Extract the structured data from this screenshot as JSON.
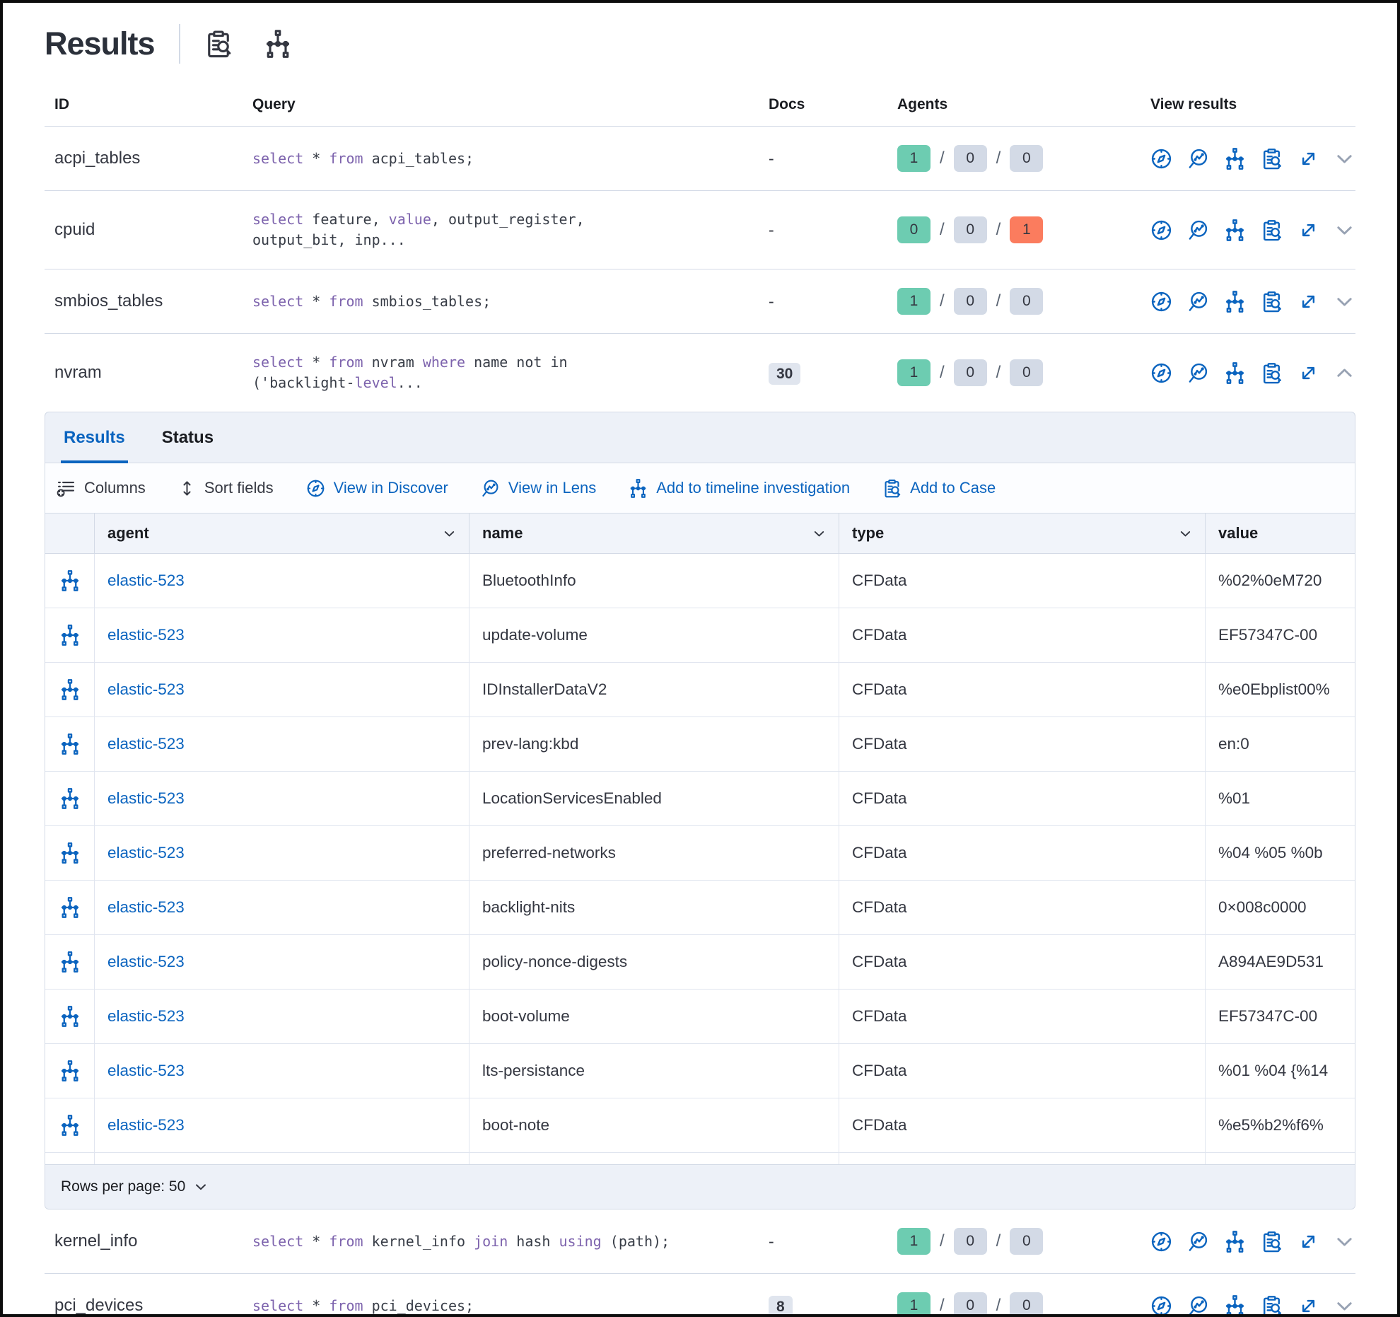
{
  "page": {
    "title": "Results"
  },
  "results_table": {
    "columns": {
      "id": "ID",
      "query": "Query",
      "docs": "Docs",
      "agents": "Agents",
      "view": "View results"
    },
    "rows_top": [
      {
        "id": "acpi_tables",
        "query": [
          {
            "c": "kw",
            "v": "select"
          },
          {
            "c": "pl",
            "v": " * "
          },
          {
            "c": "kw",
            "v": "from"
          },
          {
            "c": "pl",
            "v": " acpi_tables;"
          }
        ],
        "docs": "-",
        "docs_class": "docs-plain",
        "agents": [
          {
            "v": "1",
            "c": "green"
          },
          {
            "v": "0",
            "c": "gray"
          },
          {
            "v": "0",
            "c": "gray"
          }
        ],
        "chevron": "down"
      },
      {
        "id": "cpuid",
        "query": [
          {
            "c": "kw",
            "v": "select"
          },
          {
            "c": "pl",
            "v": " feature, "
          },
          {
            "c": "kw",
            "v": "value"
          },
          {
            "c": "pl",
            "v": ", output_register,\noutput_bit, inp..."
          }
        ],
        "docs": "-",
        "docs_class": "docs-plain",
        "agents": [
          {
            "v": "0",
            "c": "green"
          },
          {
            "v": "0",
            "c": "gray"
          },
          {
            "v": "1",
            "c": "red"
          }
        ],
        "chevron": "down"
      },
      {
        "id": "smbios_tables",
        "query": [
          {
            "c": "kw",
            "v": "select"
          },
          {
            "c": "pl",
            "v": " * "
          },
          {
            "c": "kw",
            "v": "from"
          },
          {
            "c": "pl",
            "v": " smbios_tables;"
          }
        ],
        "docs": "-",
        "docs_class": "docs-plain",
        "agents": [
          {
            "v": "1",
            "c": "green"
          },
          {
            "v": "0",
            "c": "gray"
          },
          {
            "v": "0",
            "c": "gray"
          }
        ],
        "chevron": "down"
      },
      {
        "id": "nvram",
        "query": [
          {
            "c": "kw",
            "v": "select"
          },
          {
            "c": "pl",
            "v": " * "
          },
          {
            "c": "kw",
            "v": "from"
          },
          {
            "c": "pl",
            "v": " nvram "
          },
          {
            "c": "kw",
            "v": "where"
          },
          {
            "c": "pl",
            "v": " name not in\n('backlight-"
          },
          {
            "c": "kw",
            "v": "level"
          },
          {
            "c": "pl",
            "v": "..."
          }
        ],
        "docs": "30",
        "docs_class": "docs-badge",
        "agents": [
          {
            "v": "1",
            "c": "green"
          },
          {
            "v": "0",
            "c": "gray"
          },
          {
            "v": "0",
            "c": "gray"
          }
        ],
        "chevron": "up"
      }
    ],
    "rows_bottom": [
      {
        "id": "kernel_info",
        "query": [
          {
            "c": "kw",
            "v": "select"
          },
          {
            "c": "pl",
            "v": " * "
          },
          {
            "c": "kw",
            "v": "from"
          },
          {
            "c": "pl",
            "v": " kernel_info "
          },
          {
            "c": "kw",
            "v": "join"
          },
          {
            "c": "pl",
            "v": " hash "
          },
          {
            "c": "kw",
            "v": "using"
          },
          {
            "c": "pl",
            "v": " (path);"
          }
        ],
        "docs": "-",
        "docs_class": "docs-plain",
        "agents": [
          {
            "v": "1",
            "c": "green"
          },
          {
            "v": "0",
            "c": "gray"
          },
          {
            "v": "0",
            "c": "gray"
          }
        ],
        "chevron": "down"
      },
      {
        "id": "pci_devices",
        "query": [
          {
            "c": "kw",
            "v": "select"
          },
          {
            "c": "pl",
            "v": " * "
          },
          {
            "c": "kw",
            "v": "from"
          },
          {
            "c": "pl",
            "v": " pci_devices;"
          }
        ],
        "docs": "8",
        "docs_class": "docs-badge",
        "agents": [
          {
            "v": "1",
            "c": "green"
          },
          {
            "v": "0",
            "c": "gray"
          },
          {
            "v": "0",
            "c": "gray"
          }
        ],
        "chevron": "down"
      }
    ]
  },
  "expanded": {
    "tabs": {
      "results": "Results",
      "status": "Status"
    },
    "toolbar": {
      "columns": "Columns",
      "sort_fields": "Sort fields",
      "view_in_discover": "View in Discover",
      "view_in_lens": "View in Lens",
      "add_to_timeline": "Add to timeline investigation",
      "add_to_case": "Add to Case"
    },
    "grid": {
      "columns": {
        "agent": "agent",
        "name": "name",
        "type": "type",
        "value": "value"
      },
      "rows": [
        {
          "agent": "elastic-523",
          "name": "BluetoothInfo",
          "type": "CFData",
          "value": "%02%0eM720"
        },
        {
          "agent": "elastic-523",
          "name": "update-volume",
          "type": "CFData",
          "value": "EF57347C-00"
        },
        {
          "agent": "elastic-523",
          "name": "IDInstallerDataV2",
          "type": "CFData",
          "value": "%e0Ebplist00%"
        },
        {
          "agent": "elastic-523",
          "name": "prev-lang:kbd",
          "type": "CFData",
          "value": "en:0"
        },
        {
          "agent": "elastic-523",
          "name": "LocationServicesEnabled",
          "type": "CFData",
          "value": "%01"
        },
        {
          "agent": "elastic-523",
          "name": "preferred-networks",
          "type": "CFData",
          "value": "%04 %05 %0b"
        },
        {
          "agent": "elastic-523",
          "name": "backlight-nits",
          "type": "CFData",
          "value": "0×008c0000"
        },
        {
          "agent": "elastic-523",
          "name": "policy-nonce-digests",
          "type": "CFData",
          "value": "A894AE9D531"
        },
        {
          "agent": "elastic-523",
          "name": "boot-volume",
          "type": "CFData",
          "value": "EF57347C-00"
        },
        {
          "agent": "elastic-523",
          "name": "lts-persistance",
          "type": "CFData",
          "value": "%01 %04 {%14"
        },
        {
          "agent": "elastic-523",
          "name": "boot-note",
          "type": "CFData",
          "value": "%e5%b2%f6%"
        }
      ]
    },
    "footer": {
      "rows_per_page": "Rows per page: 50"
    }
  },
  "colors": {
    "link_blue": "#0b64bf",
    "keyword_purple": "#7d63ad",
    "badge_green": "#6dccb1",
    "badge_gray": "#d3dae6",
    "badge_red": "#fb7c5e",
    "border": "#d3dae6",
    "panel_bg": "#edf1f8"
  }
}
